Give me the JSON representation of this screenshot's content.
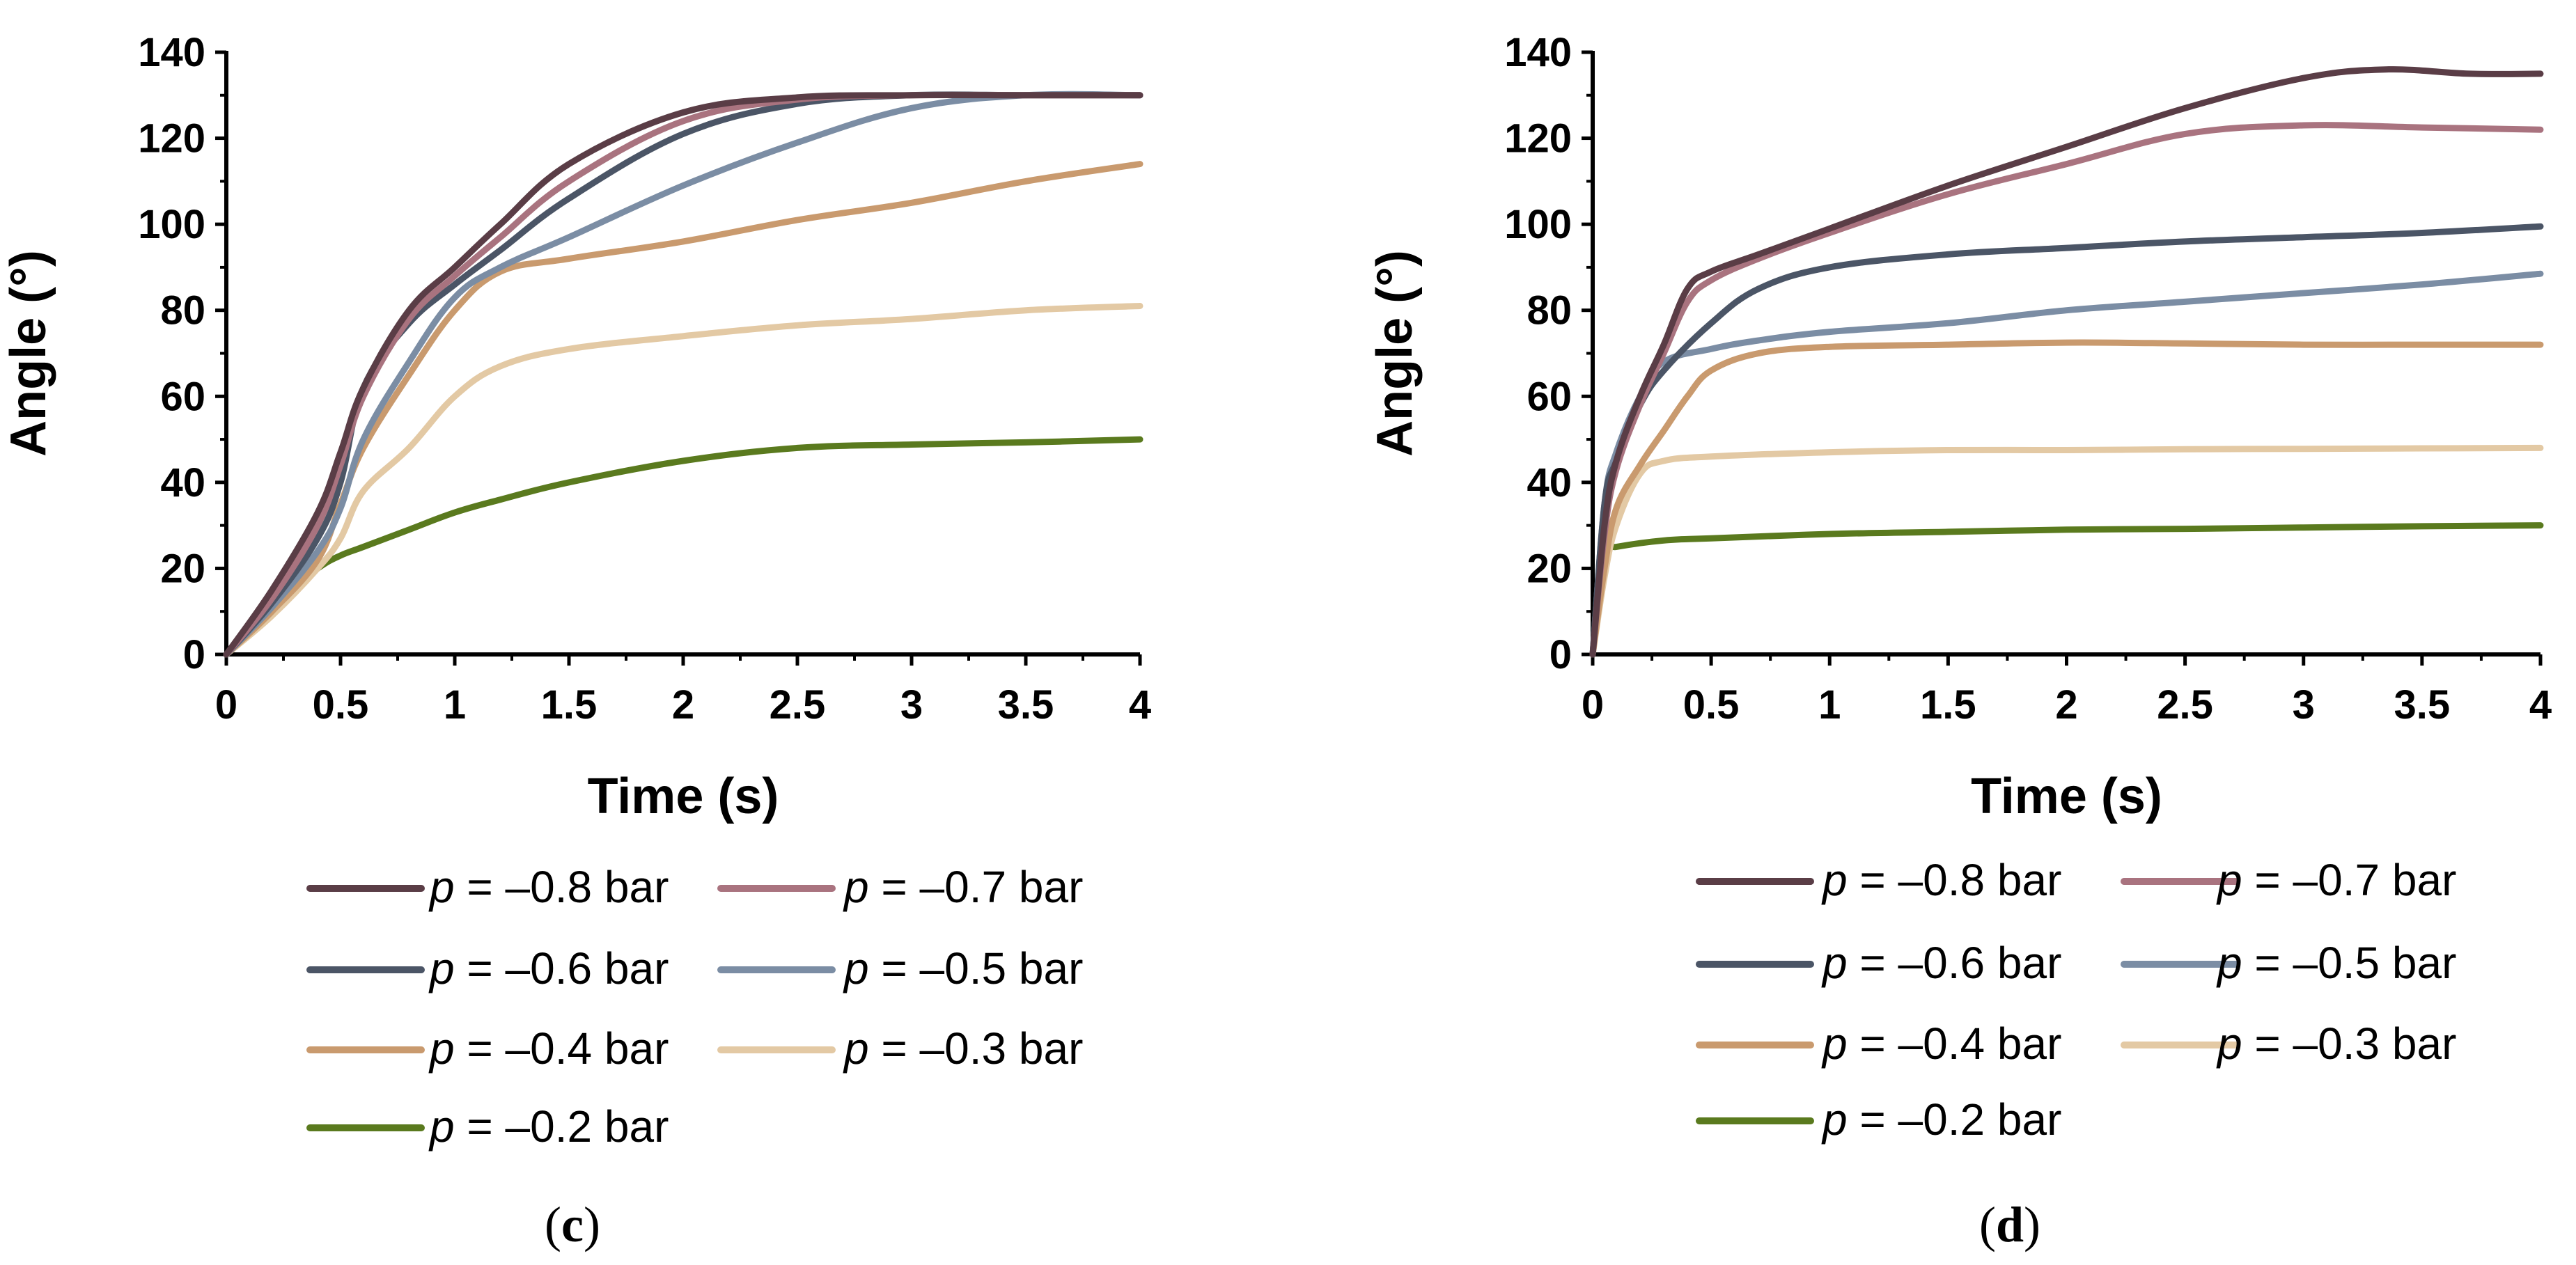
{
  "chart_data": [
    {
      "type": "line",
      "panel_label": "(c)",
      "xlabel": "Time (s)",
      "ylabel": "Angle (°)",
      "xlim": [
        0,
        4
      ],
      "ylim": [
        0,
        140
      ],
      "x_ticks": [
        0,
        0.5,
        1,
        1.5,
        2,
        2.5,
        3,
        3.5,
        4
      ],
      "x_tick_labels": [
        "0",
        "0.5",
        "1",
        "1.5",
        "2",
        "2.5",
        "3",
        "3.5",
        "4"
      ],
      "y_ticks": [
        0,
        20,
        40,
        60,
        80,
        100,
        120,
        140
      ],
      "y_tick_labels": [
        "0",
        "20",
        "40",
        "60",
        "80",
        "100",
        "120",
        "140"
      ],
      "grid": false,
      "legend_position": "bottom",
      "series": [
        {
          "name": "p = –0.8 bar",
          "p_value": "= –0.8 bar",
          "color": "#5a3d46",
          "x": [
            0,
            0.2,
            0.4,
            0.5,
            0.6,
            0.8,
            1,
            1.2,
            1.5,
            2,
            2.5,
            3,
            3.5,
            4
          ],
          "y": [
            0,
            15,
            33,
            47,
            62,
            80,
            90,
            100,
            114,
            126,
            129.5,
            130,
            130,
            130
          ]
        },
        {
          "name": "p = –0.7 bar",
          "p_value": "= –0.7 bar",
          "color": "#a9737f",
          "x": [
            0,
            0.2,
            0.4,
            0.5,
            0.6,
            0.8,
            1,
            1.2,
            1.5,
            2,
            2.5,
            3,
            3.5,
            4
          ],
          "y": [
            0,
            13,
            30,
            44,
            60,
            78,
            88,
            97,
            110,
            124,
            129,
            130,
            130,
            130
          ]
        },
        {
          "name": "p = –0.6 bar",
          "p_value": "= –0.6 bar",
          "color": "#4b5566",
          "x": [
            0,
            0.2,
            0.4,
            0.5,
            0.6,
            0.8,
            1,
            1.2,
            1.5,
            2,
            2.5,
            3,
            3.5,
            4
          ],
          "y": [
            0,
            12,
            27,
            40,
            62,
            77,
            86,
            94,
            106,
            121,
            128,
            130,
            130,
            130
          ]
        },
        {
          "name": "p = –0.5 bar",
          "p_value": "= –0.5 bar",
          "color": "#7b8da4",
          "x": [
            0,
            0.2,
            0.4,
            0.5,
            0.6,
            0.8,
            1,
            1.2,
            1.5,
            2,
            2.5,
            3,
            3.5,
            4
          ],
          "y": [
            0,
            11,
            24,
            34,
            50,
            68,
            83,
            90,
            97,
            109,
            119,
            127,
            130,
            130
          ]
        },
        {
          "name": "p = –0.4 bar",
          "p_value": "= –0.4 bar",
          "color": "#c99a6e",
          "x": [
            0,
            0.2,
            0.4,
            0.5,
            0.6,
            0.8,
            1,
            1.2,
            1.5,
            2,
            2.5,
            3,
            3.5,
            4
          ],
          "y": [
            0,
            10,
            22,
            35,
            48,
            65,
            80,
            89,
            92,
            96,
            101,
            105,
            110,
            114
          ]
        },
        {
          "name": "p = –0.3 bar",
          "p_value": "= –0.3 bar",
          "color": "#e3c9a4",
          "x": [
            0,
            0.2,
            0.4,
            0.5,
            0.6,
            0.8,
            1,
            1.2,
            1.5,
            2,
            2.5,
            3,
            3.5,
            4
          ],
          "y": [
            0,
            9,
            20,
            27,
            38,
            48,
            60,
            67,
            71,
            74,
            76.5,
            78,
            80,
            81
          ]
        },
        {
          "name": "p = –0.2 bar",
          "p_value": "= –0.2 bar",
          "color": "#5a7a1e",
          "x": [
            0,
            0.2,
            0.4,
            0.5,
            0.6,
            0.8,
            1,
            1.2,
            1.5,
            2,
            2.5,
            3,
            3.5,
            4
          ],
          "y": [
            0,
            12,
            20,
            23,
            25,
            29,
            33,
            36,
            40,
            45,
            48,
            48.8,
            49.3,
            50
          ]
        }
      ]
    },
    {
      "type": "line",
      "panel_label": "(d)",
      "xlabel": "Time (s)",
      "ylabel": "Angle (°)",
      "xlim": [
        0,
        4
      ],
      "ylim": [
        0,
        140
      ],
      "x_ticks": [
        0,
        0.5,
        1,
        1.5,
        2,
        2.5,
        3,
        3.5,
        4
      ],
      "x_tick_labels": [
        "0",
        "0.5",
        "1",
        "1.5",
        "2",
        "2.5",
        "3",
        "3.5",
        "4"
      ],
      "y_ticks": [
        0,
        20,
        40,
        60,
        80,
        100,
        120,
        140
      ],
      "y_tick_labels": [
        "0",
        "20",
        "40",
        "60",
        "80",
        "100",
        "120",
        "140"
      ],
      "grid": false,
      "legend_position": "bottom",
      "series": [
        {
          "name": "p = –0.8 bar",
          "p_value": "= –0.8 bar",
          "color": "#5a3d46",
          "x": [
            0,
            0.05,
            0.1,
            0.2,
            0.3,
            0.4,
            0.5,
            0.7,
            1,
            1.5,
            2,
            2.5,
            3,
            3.35,
            3.7,
            4
          ],
          "y": [
            0,
            30,
            45,
            60,
            72,
            85,
            89,
            93,
            99,
            109,
            118,
            127,
            134,
            136,
            135,
            135
          ]
        },
        {
          "name": "p = –0.7 bar",
          "p_value": "= –0.7 bar",
          "color": "#a9737f",
          "x": [
            0,
            0.05,
            0.1,
            0.2,
            0.3,
            0.4,
            0.5,
            0.7,
            1,
            1.5,
            2,
            2.5,
            3,
            3.5,
            4
          ],
          "y": [
            0,
            28,
            43,
            58,
            70,
            82,
            87,
            92,
            98,
            107,
            114,
            121,
            123,
            122.5,
            122
          ]
        },
        {
          "name": "p = –0.6 bar",
          "p_value": "= –0.6 bar",
          "color": "#4b5566",
          "x": [
            0,
            0.05,
            0.1,
            0.2,
            0.3,
            0.5,
            0.7,
            1,
            1.5,
            2,
            2.5,
            3,
            3.5,
            4
          ],
          "y": [
            0,
            35,
            45,
            58,
            66,
            77,
            85,
            90,
            93,
            94.5,
            96,
            97,
            98,
            99.5
          ]
        },
        {
          "name": "p = –0.5 bar",
          "p_value": "= –0.5 bar",
          "color": "#7b8da4",
          "x": [
            0,
            0.05,
            0.1,
            0.2,
            0.3,
            0.5,
            0.7,
            1,
            1.5,
            2,
            2.5,
            3,
            3.5,
            4
          ],
          "y": [
            0,
            35,
            47,
            60,
            68,
            71,
            73,
            75,
            77,
            80,
            82,
            84,
            86,
            88.5
          ]
        },
        {
          "name": "p = –0.4 bar",
          "p_value": "= –0.4 bar",
          "color": "#c99a6e",
          "x": [
            0,
            0.05,
            0.1,
            0.2,
            0.3,
            0.4,
            0.5,
            0.7,
            1,
            1.5,
            2,
            2.5,
            3,
            3.5,
            4
          ],
          "y": [
            0,
            20,
            34,
            44,
            52,
            60,
            66,
            70,
            71.5,
            72,
            72.5,
            72.3,
            72,
            72,
            72
          ]
        },
        {
          "name": "p = –0.3 bar",
          "p_value": "= –0.3 bar",
          "color": "#e3c9a4",
          "x": [
            0,
            0.05,
            0.1,
            0.2,
            0.3,
            0.5,
            1,
            1.5,
            2,
            2.5,
            3,
            3.5,
            4
          ],
          "y": [
            0,
            18,
            30,
            42,
            45,
            46,
            47,
            47.5,
            47.5,
            47.7,
            47.8,
            47.9,
            48
          ]
        },
        {
          "name": "p = –0.2 bar",
          "p_value": "= –0.2 bar",
          "color": "#5a7a1e",
          "x": [
            0,
            0.05,
            0.1,
            0.3,
            0.5,
            1,
            1.5,
            2,
            2.5,
            3,
            3.5,
            4
          ],
          "y": [
            0,
            24,
            25,
            26.5,
            27,
            28,
            28.5,
            29,
            29.2,
            29.5,
            29.8,
            30
          ]
        }
      ]
    }
  ]
}
